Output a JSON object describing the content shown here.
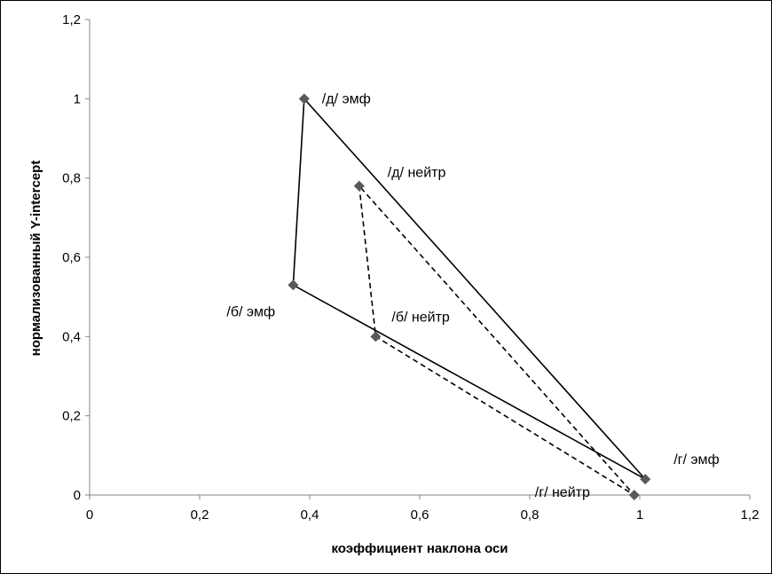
{
  "chart_data": {
    "type": "scatter",
    "title": "",
    "xlabel": "коэффициент наклона оси",
    "ylabel": "нормализованный Y-intercept",
    "xlim": [
      0,
      1.2
    ],
    "ylim": [
      0,
      1.2
    ],
    "x_ticks": [
      "0",
      "0,2",
      "0,4",
      "0,6",
      "0,8",
      "1",
      "1,2"
    ],
    "y_ticks": [
      "0",
      "0,2",
      "0,4",
      "0,6",
      "0,8",
      "1",
      "1,2"
    ],
    "grid": false,
    "legend": "none",
    "marker": "diamond",
    "marker_color": "#595959",
    "series": [
      {
        "style": "solid",
        "points": [
          {
            "label": "/д/ эмф",
            "x": 0.39,
            "y": 1.0
          },
          {
            "label": "/б/ эмф",
            "x": 0.37,
            "y": 0.53
          },
          {
            "label": "/г/ эмф",
            "x": 1.01,
            "y": 0.04
          }
        ]
      },
      {
        "style": "dashed",
        "points": [
          {
            "label": "/д/ нейтр",
            "x": 0.49,
            "y": 0.78
          },
          {
            "label": "/б/ нейтр",
            "x": 0.52,
            "y": 0.4
          },
          {
            "label": "/г/ нейтр",
            "x": 0.99,
            "y": 0.0
          }
        ]
      }
    ]
  }
}
